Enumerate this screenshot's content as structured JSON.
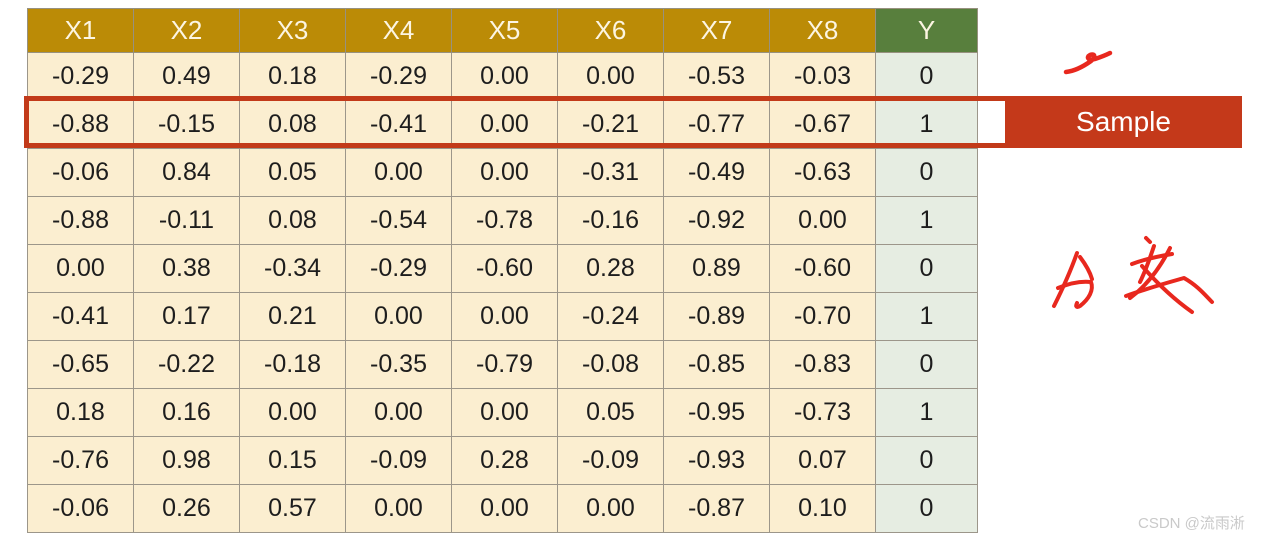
{
  "chart_data": {
    "type": "table",
    "title": "",
    "columns": [
      "X1",
      "X2",
      "X3",
      "X4",
      "X5",
      "X6",
      "X7",
      "X8",
      "Y"
    ],
    "rows": [
      [
        "-0.29",
        "0.49",
        "0.18",
        "-0.29",
        "0.00",
        "0.00",
        "-0.53",
        "-0.03",
        "0"
      ],
      [
        "-0.88",
        "-0.15",
        "0.08",
        "-0.41",
        "0.00",
        "-0.21",
        "-0.77",
        "-0.67",
        "1"
      ],
      [
        "-0.06",
        "0.84",
        "0.05",
        "0.00",
        "0.00",
        "-0.31",
        "-0.49",
        "-0.63",
        "0"
      ],
      [
        "-0.88",
        "-0.11",
        "0.08",
        "-0.54",
        "-0.78",
        "-0.16",
        "-0.92",
        "0.00",
        "1"
      ],
      [
        "0.00",
        "0.38",
        "-0.34",
        "-0.29",
        "-0.60",
        "0.28",
        "0.89",
        "-0.60",
        "0"
      ],
      [
        "-0.41",
        "0.17",
        "0.21",
        "0.00",
        "0.00",
        "-0.24",
        "-0.89",
        "-0.70",
        "1"
      ],
      [
        "-0.65",
        "-0.22",
        "-0.18",
        "-0.35",
        "-0.79",
        "-0.08",
        "-0.85",
        "-0.83",
        "0"
      ],
      [
        "0.18",
        "0.16",
        "0.00",
        "0.00",
        "0.00",
        "0.05",
        "-0.95",
        "-0.73",
        "1"
      ],
      [
        "-0.76",
        "0.98",
        "0.15",
        "-0.09",
        "0.28",
        "-0.09",
        "-0.93",
        "0.07",
        "0"
      ],
      [
        "-0.06",
        "0.26",
        "0.57",
        "0.00",
        "0.00",
        "0.00",
        "-0.87",
        "0.10",
        "0"
      ]
    ],
    "highlighted_row_index": 1,
    "legend_position": "none",
    "grid": true
  },
  "annotations": {
    "sample_label": "Sample",
    "handwriting_text": "分类",
    "watermark": "CSDN @流雨淅"
  },
  "colors": {
    "feature_header": "#BB8B06",
    "label_header": "#587F3D",
    "feature_cell": "#FBEED0",
    "label_cell": "#E6EDE2",
    "highlight_red": "#C23A19",
    "ink_red": "#E8281E"
  }
}
